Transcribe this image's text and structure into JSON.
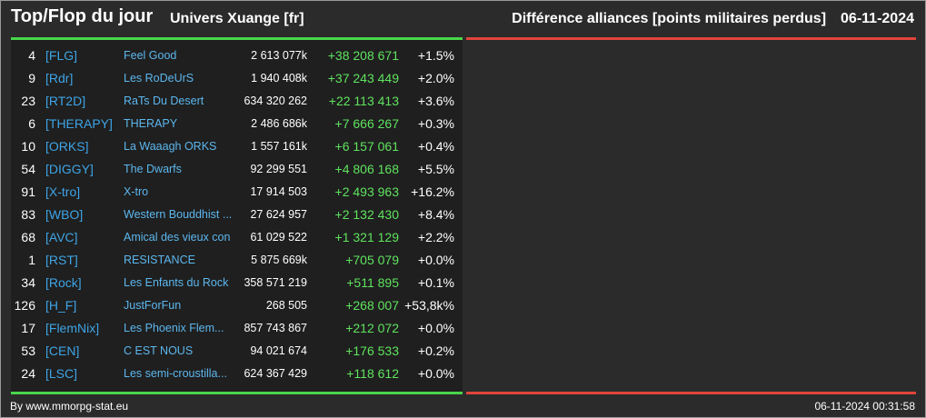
{
  "header": {
    "title": "Top/Flop du jour",
    "subtitle": "Univers Xuange [fr]",
    "right_title": "Différence alliances [points militaires perdus]",
    "date": "06-11-2024"
  },
  "colors": {
    "background": "#2b2b2b",
    "panel": "#1f1f1f",
    "top_accent": "#47d64a",
    "flop_accent": "#e0443c",
    "tag": "#3ea4e6",
    "name": "#5cb7ee",
    "gain": "#5fe35f"
  },
  "rows": [
    {
      "rank": "4",
      "tag": "[FLG]",
      "name": "Feel Good",
      "points": "2 613 077k",
      "diff": "+38 208 671",
      "pct": "+1.5%"
    },
    {
      "rank": "9",
      "tag": "[Rdr]",
      "name": "Les RoDeUrS",
      "points": "1 940 408k",
      "diff": "+37 243 449",
      "pct": "+2.0%"
    },
    {
      "rank": "23",
      "tag": "[RT2D]",
      "name": "RaTs Du Desert",
      "points": "634 320 262",
      "diff": "+22 113 413",
      "pct": "+3.6%"
    },
    {
      "rank": "6",
      "tag": "[THERAPY]",
      "name": "THERAPY",
      "points": "2 486 686k",
      "diff": "+7 666 267",
      "pct": "+0.3%"
    },
    {
      "rank": "10",
      "tag": "[ORKS]",
      "name": "La Waaagh ORKS",
      "points": "1 557 161k",
      "diff": "+6 157 061",
      "pct": "+0.4%"
    },
    {
      "rank": "54",
      "tag": "[DIGGY]",
      "name": "The Dwarfs",
      "points": "92 299 551",
      "diff": "+4 806 168",
      "pct": "+5.5%"
    },
    {
      "rank": "91",
      "tag": "[X-tro]",
      "name": "X-tro",
      "points": "17 914 503",
      "diff": "+2 493 963",
      "pct": "+16.2%"
    },
    {
      "rank": "83",
      "tag": "[WBO]",
      "name": "Western Bouddhist ...",
      "points": "27 624 957",
      "diff": "+2 132 430",
      "pct": "+8.4%"
    },
    {
      "rank": "68",
      "tag": "[AVC]",
      "name": "Amical des vieux con",
      "points": "61 029 522",
      "diff": "+1 321 129",
      "pct": "+2.2%"
    },
    {
      "rank": "1",
      "tag": "[RST]",
      "name": "RESISTANCE",
      "points": "5 875 669k",
      "diff": "+705 079",
      "pct": "+0.0%"
    },
    {
      "rank": "34",
      "tag": "[Rock]",
      "name": "Les Enfants du Rock",
      "points": "358 571 219",
      "diff": "+511 895",
      "pct": "+0.1%"
    },
    {
      "rank": "126",
      "tag": "[H_F]",
      "name": "JustForFun",
      "points": "268 505",
      "diff": "+268 007",
      "pct": "+53,8k%"
    },
    {
      "rank": "17",
      "tag": "[FlemNix]",
      "name": "Les Phoenix Flem...",
      "points": "857 743 867",
      "diff": "+212 072",
      "pct": "+0.0%"
    },
    {
      "rank": "53",
      "tag": "[CEN]",
      "name": "C EST NOUS",
      "points": "94 021 674",
      "diff": "+176 533",
      "pct": "+0.2%"
    },
    {
      "rank": "24",
      "tag": "[LSC]",
      "name": "Les semi-croustilla...",
      "points": "624 367 429",
      "diff": "+118 612",
      "pct": "+0.0%"
    }
  ],
  "footer": {
    "credit": "By www.mmorpg-stat.eu",
    "timestamp": "06-11-2024 00:31:58"
  }
}
